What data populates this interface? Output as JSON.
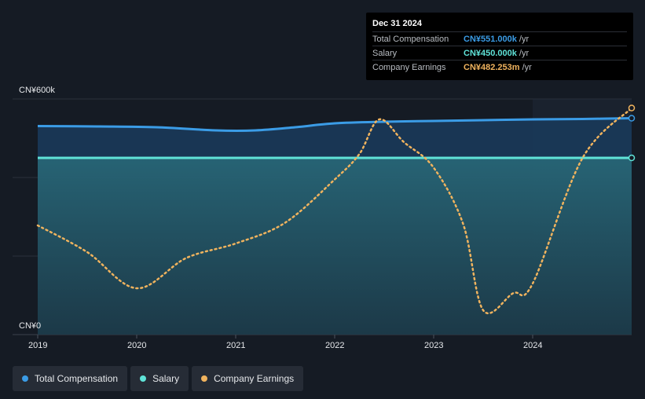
{
  "chart_data": {
    "type": "line",
    "y_unit_label_top": "CN¥600k",
    "y_unit_label_bottom": "CN¥0",
    "ylim": [
      0,
      600
    ],
    "xlim": [
      2019.0,
      2025.0
    ],
    "x_tick_labels": [
      "2019",
      "2020",
      "2021",
      "2022",
      "2023",
      "2024"
    ],
    "x_ticks": [
      2019,
      2020,
      2021,
      2022,
      2023,
      2024
    ],
    "forecast_shade_start": 2024.0,
    "series": [
      {
        "name": "Total Compensation",
        "color": "#3b9ce6",
        "style": "solid-area",
        "points": [
          [
            2019.0,
            531
          ],
          [
            2019.6,
            530
          ],
          [
            2020.2,
            528
          ],
          [
            2020.8,
            520
          ],
          [
            2021.2,
            520
          ],
          [
            2021.6,
            528
          ],
          [
            2022.0,
            538
          ],
          [
            2022.5,
            542
          ],
          [
            2023.0,
            544
          ],
          [
            2023.5,
            546
          ],
          [
            2024.0,
            548
          ],
          [
            2024.5,
            549
          ],
          [
            2025.0,
            551
          ]
        ]
      },
      {
        "name": "Salary",
        "color": "#5fe3d8",
        "style": "solid-area",
        "points": [
          [
            2019.0,
            450
          ],
          [
            2025.0,
            450
          ]
        ]
      },
      {
        "name": "Company Earnings",
        "color": "#f0b35e",
        "style": "dotted",
        "points": [
          [
            2019.0,
            278
          ],
          [
            2019.5,
            210
          ],
          [
            2020.0,
            118
          ],
          [
            2020.5,
            195
          ],
          [
            2021.0,
            232
          ],
          [
            2021.5,
            285
          ],
          [
            2022.0,
            395
          ],
          [
            2022.25,
            460
          ],
          [
            2022.45,
            548
          ],
          [
            2022.7,
            490
          ],
          [
            2023.0,
            425
          ],
          [
            2023.3,
            280
          ],
          [
            2023.5,
            62
          ],
          [
            2023.8,
            105
          ],
          [
            2024.0,
            130
          ],
          [
            2024.5,
            448
          ],
          [
            2025.0,
            577
          ]
        ]
      }
    ]
  },
  "tooltip": {
    "date": "Dec 31 2024",
    "rows": [
      {
        "label": "Total Compensation",
        "value": "CN¥551.000k",
        "unit": "/yr",
        "color": "#3b9ce6"
      },
      {
        "label": "Salary",
        "value": "CN¥450.000k",
        "unit": "/yr",
        "color": "#5fe3d8"
      },
      {
        "label": "Company Earnings",
        "value": "CN¥482.253m",
        "unit": "/yr",
        "color": "#f0b35e"
      }
    ]
  },
  "legend": [
    {
      "label": "Total Compensation",
      "color": "#3b9ce6"
    },
    {
      "label": "Salary",
      "color": "#5fe3d8"
    },
    {
      "label": "Company Earnings",
      "color": "#f0b35e"
    }
  ]
}
